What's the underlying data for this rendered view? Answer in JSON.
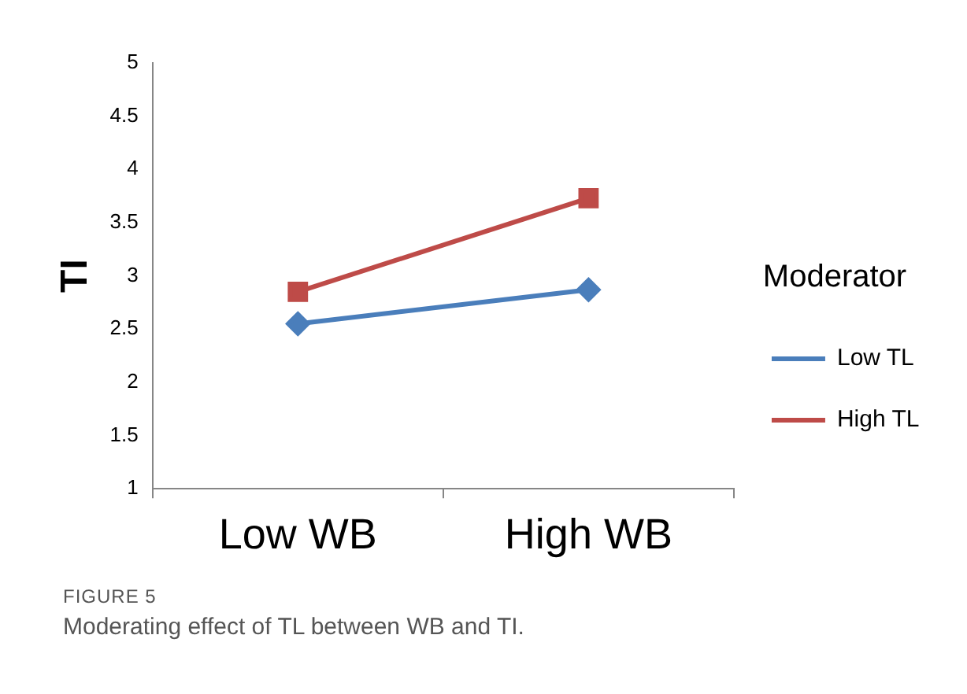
{
  "chart_data": {
    "type": "line",
    "ylabel": "TI",
    "legend_title": "Moderator",
    "categories": [
      "Low WB",
      "High WB"
    ],
    "series": [
      {
        "name": "Low TL",
        "color": "#4a7ebb",
        "values": [
          2.55,
          2.87
        ],
        "marker": "diamond"
      },
      {
        "name": "High TL",
        "color": "#be4b48",
        "values": [
          2.85,
          3.73
        ],
        "marker": "square"
      }
    ],
    "ylim": [
      1,
      5
    ],
    "yticks": [
      1,
      1.5,
      2,
      2.5,
      3,
      3.5,
      4,
      4.5,
      5
    ],
    "grid": false,
    "legend": "right",
    "line_style": "solid",
    "annotations": [
      "FIGURE 5",
      "Moderating effect of TL between WB and TI."
    ]
  }
}
